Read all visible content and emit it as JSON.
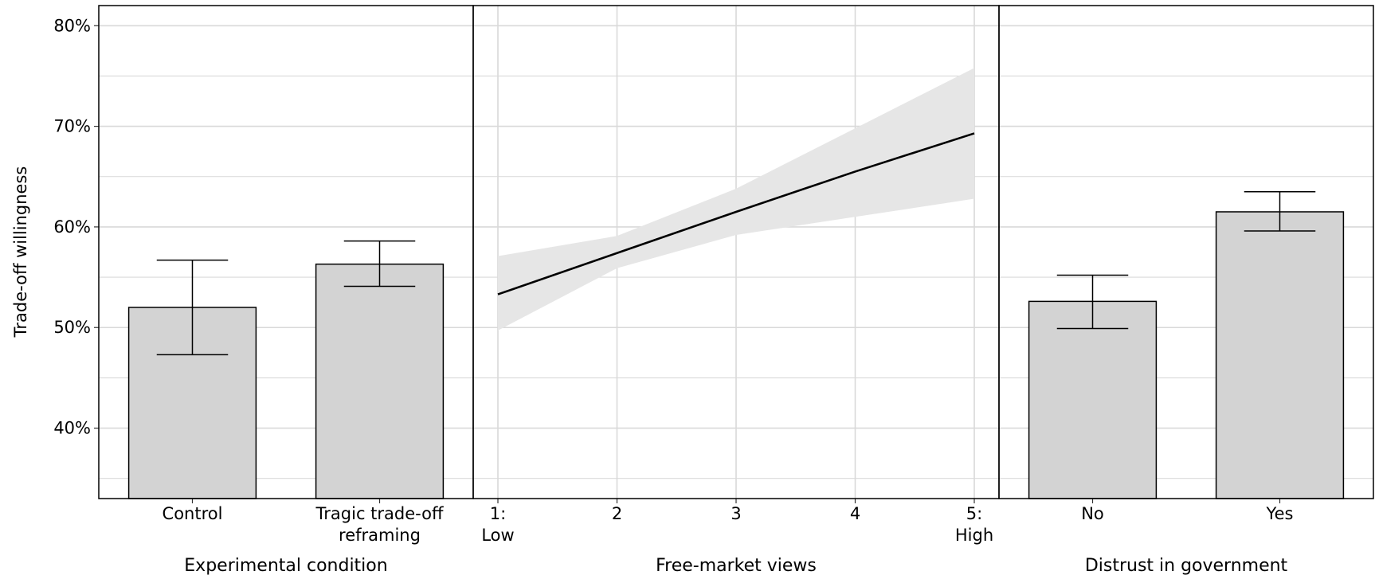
{
  "chart_data": {
    "type": "bar",
    "ylabel": "Trade-off willingness",
    "y_unit": "%",
    "ylim": [
      33,
      82
    ],
    "y_ticks": [
      40,
      50,
      60,
      70,
      80
    ],
    "y_tick_labels": [
      "40%",
      "50%",
      "60%",
      "70%",
      "80%"
    ],
    "grid": true,
    "colors": {
      "bar_fill": "#d3d3d3",
      "ribbon": "#e6e6e6",
      "grid": "#d9d9d9",
      "line": "#000000"
    },
    "panels": [
      {
        "type": "bar",
        "xlabel": "Experimental condition",
        "categories": [
          [
            "Control"
          ],
          [
            "Tragic trade-off",
            "reframing"
          ]
        ],
        "values": [
          52.0,
          56.3
        ],
        "error_low": [
          47.3,
          54.1
        ],
        "error_high": [
          56.7,
          58.6
        ]
      },
      {
        "type": "line",
        "xlabel": "Free-market views",
        "x_ticks": [
          1,
          2,
          3,
          4,
          5
        ],
        "x_tick_labels": [
          [
            "1:",
            "Low"
          ],
          [
            "2"
          ],
          [
            "3"
          ],
          [
            "4"
          ],
          [
            "5:",
            "High"
          ]
        ],
        "x": [
          1,
          2,
          3,
          4,
          5
        ],
        "y": [
          53.3,
          57.4,
          61.5,
          65.5,
          69.3
        ],
        "ci_low": [
          49.7,
          55.9,
          59.2,
          61.0,
          62.8
        ],
        "ci_high": [
          57.1,
          59.1,
          63.8,
          69.8,
          75.8
        ]
      },
      {
        "type": "bar",
        "xlabel": "Distrust in government",
        "categories": [
          [
            "No"
          ],
          [
            "Yes"
          ]
        ],
        "values": [
          52.6,
          61.5
        ],
        "error_low": [
          49.9,
          59.6
        ],
        "error_high": [
          55.2,
          63.5
        ]
      }
    ]
  }
}
